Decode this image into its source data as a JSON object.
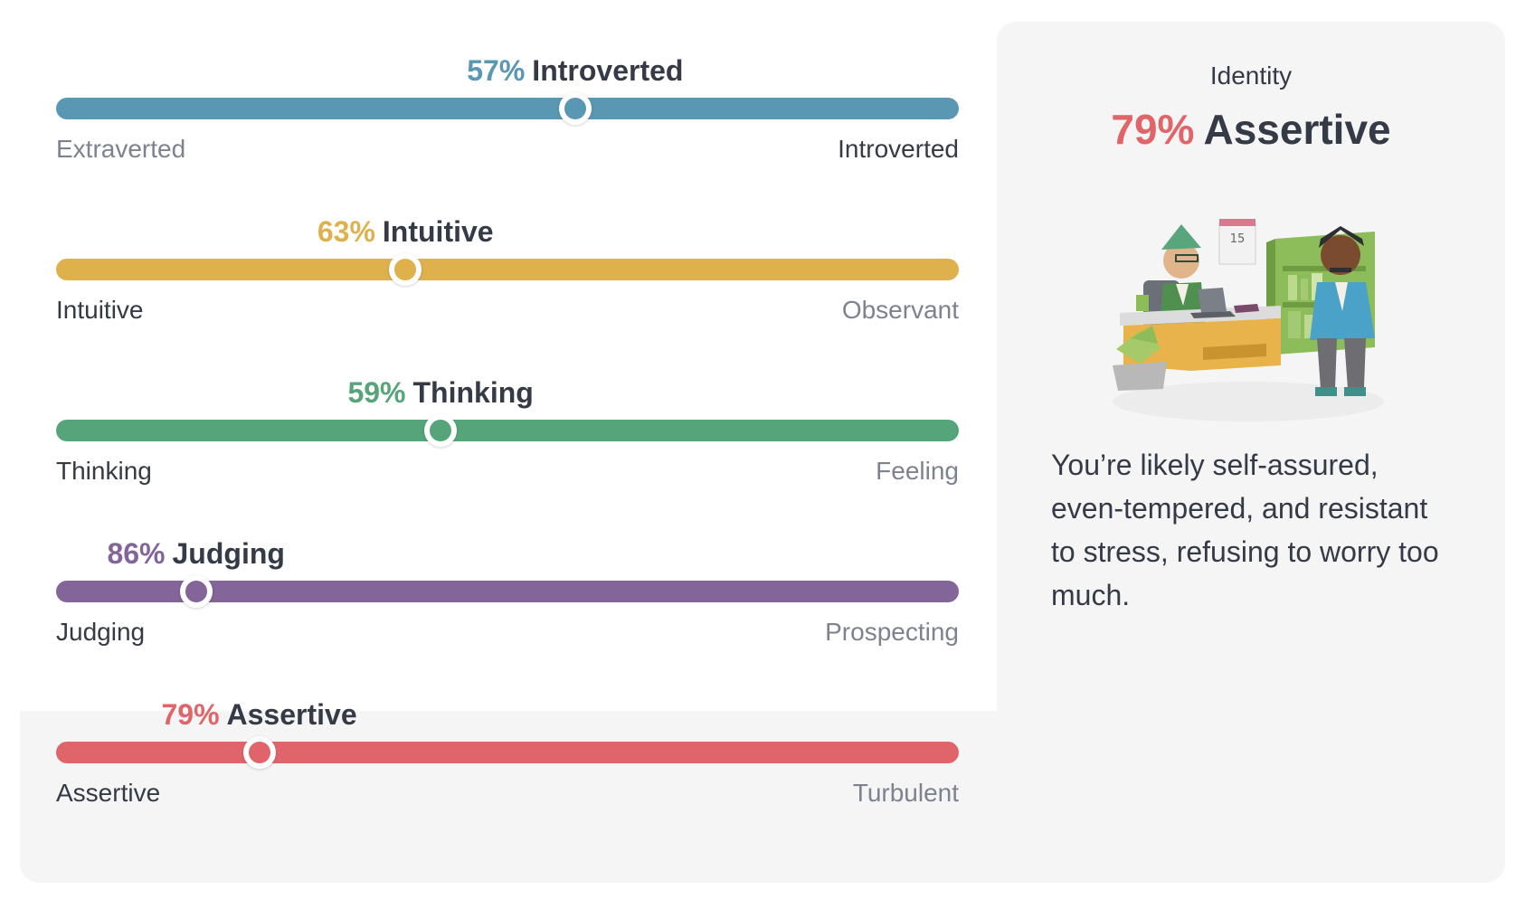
{
  "traits": [
    {
      "id": "mind",
      "percent": "57%",
      "label": "Introverted",
      "value": 57,
      "position_fraction": 0.575,
      "left_pole": "Extraverted",
      "right_pole": "Introverted",
      "color": "#5a97b3",
      "active_side": "right"
    },
    {
      "id": "energy",
      "percent": "63%",
      "label": "Intuitive",
      "value": 63,
      "position_fraction": 0.387,
      "left_pole": "Intuitive",
      "right_pole": "Observant",
      "color": "#dfb14d",
      "active_side": "left"
    },
    {
      "id": "nature",
      "percent": "59%",
      "label": "Thinking",
      "value": 59,
      "position_fraction": 0.426,
      "left_pole": "Thinking",
      "right_pole": "Feeling",
      "color": "#56a57a",
      "active_side": "left"
    },
    {
      "id": "tactics",
      "percent": "86%",
      "label": "Judging",
      "value": 86,
      "position_fraction": 0.155,
      "left_pole": "Judging",
      "right_pole": "Prospecting",
      "color": "#83659a",
      "active_side": "left"
    },
    {
      "id": "identity",
      "percent": "79%",
      "label": "Assertive",
      "value": 79,
      "position_fraction": 0.225,
      "left_pole": "Assertive",
      "right_pole": "Turbulent",
      "color": "#e0656a",
      "active_side": "left"
    }
  ],
  "detail": {
    "category": "Identity",
    "percent": "79%",
    "label": "Assertive",
    "accent_color": "#e0656a",
    "illustration_icon": "office-people-illustration",
    "description": "You’re likely self-assured, even-tempered, and resistant to stress, refusing to worry too much."
  }
}
